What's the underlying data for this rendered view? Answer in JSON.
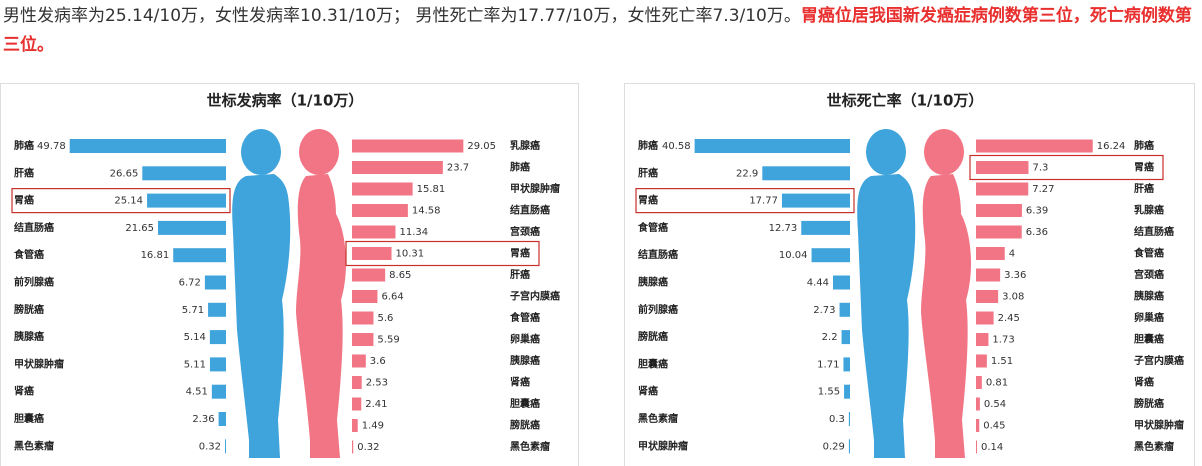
{
  "intro": {
    "text": "男性发病率为25.14/10万，女性发病率10.31/10万； 男性死亡率为17.77/10万，女性死亡率7.3/10万。",
    "emphasis": "胃癌位居我国新发癌症病例数第三位，死亡病例数第三位。"
  },
  "chart_data": [
    {
      "type": "butterfly",
      "title": "世标发病率（1/10万）",
      "series": [
        {
          "side": "left",
          "color": "#3fa3dc",
          "xlim": [
            0,
            50
          ],
          "highlight": 2,
          "categories": [
            "肺癌",
            "肝癌",
            "胃癌",
            "结直肠癌",
            "食管癌",
            "前列腺癌",
            "膀胱癌",
            "胰腺癌",
            "甲状腺肿瘤",
            "肾癌",
            "胆囊癌",
            "黑色素瘤"
          ],
          "values": [
            49.78,
            26.65,
            25.14,
            21.65,
            16.81,
            6.72,
            5.71,
            5.14,
            5.11,
            4.51,
            2.36,
            0.32
          ]
        },
        {
          "side": "right",
          "color": "#f27585",
          "xlim": [
            0,
            30
          ],
          "highlight": 5,
          "categories": [
            "乳腺癌",
            "肺癌",
            "甲状腺肿瘤",
            "结直肠癌",
            "宫颈癌",
            "胃癌",
            "肝癌",
            "子宫内膜癌",
            "食管癌",
            "卵巢癌",
            "胰腺癌",
            "肾癌",
            "胆囊癌",
            "膀胱癌",
            "黑色素瘤"
          ],
          "values": [
            29.05,
            23.7,
            15.81,
            14.58,
            11.34,
            10.31,
            8.65,
            6.64,
            5.6,
            5.59,
            3.6,
            2.53,
            2.41,
            1.49,
            0.32
          ]
        }
      ]
    },
    {
      "type": "butterfly",
      "title": "世标死亡率（1/10万）",
      "series": [
        {
          "side": "left",
          "color": "#3fa3dc",
          "xlim": [
            0,
            41
          ],
          "highlight": 2,
          "categories": [
            "肺癌",
            "肝癌",
            "胃癌",
            "食管癌",
            "结直肠癌",
            "胰腺癌",
            "前列腺癌",
            "膀胱癌",
            "胆囊癌",
            "肾癌",
            "黑色素瘤",
            "甲状腺肿瘤"
          ],
          "values": [
            40.58,
            22.9,
            17.77,
            12.73,
            10.04,
            4.44,
            2.73,
            2.2,
            1.71,
            1.55,
            0.3,
            0.29
          ]
        },
        {
          "side": "right",
          "color": "#f27585",
          "xlim": [
            0,
            16
          ],
          "highlight": 1,
          "categories": [
            "肺癌",
            "胃癌",
            "肝癌",
            "乳腺癌",
            "结直肠癌",
            "食管癌",
            "宫颈癌",
            "胰腺癌",
            "卵巢癌",
            "胆囊癌",
            "子宫内膜癌",
            "肾癌",
            "膀胱癌",
            "甲状腺肿瘤",
            "黑色素瘤"
          ],
          "values": [
            16.24,
            7.3,
            7.27,
            6.39,
            6.36,
            4,
            3.36,
            3.08,
            2.45,
            1.73,
            1.51,
            0.81,
            0.54,
            0.45,
            0.14
          ]
        }
      ]
    }
  ]
}
